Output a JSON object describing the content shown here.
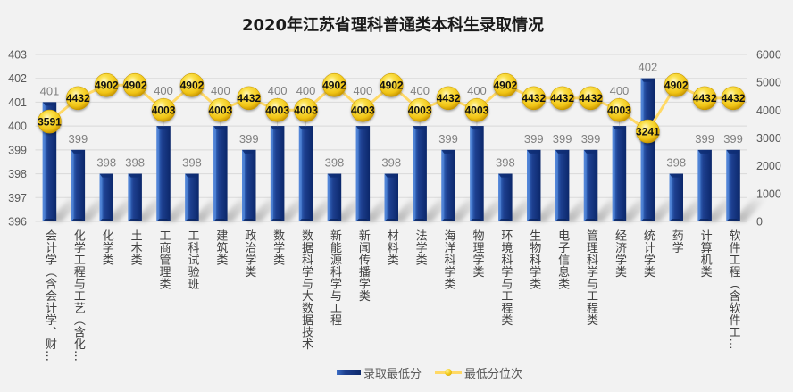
{
  "chart_data": {
    "type": "bar",
    "title": "2020年江苏省理科普通类本科生录取情况",
    "xlabel": "",
    "ylabel": "",
    "categories": [
      "会计学（含会计学、财…",
      "化学工程与工艺（含化…",
      "化学类",
      "土木类",
      "工商管理类",
      "工科试验班",
      "建筑类",
      "政治学类",
      "数学类",
      "数据科学与大数据技术",
      "新能源科学与工程",
      "新闻传播学类",
      "材料类",
      "法学类",
      "海洋科学类",
      "物理学类",
      "环境科学与工程类",
      "生物科学类",
      "电子信息类",
      "管理科学与工程类",
      "经济学类",
      "统计学类",
      "药学",
      "计算机类",
      "软件工程（含软件工…"
    ],
    "series": [
      {
        "name": "录取最低分",
        "chart_type": "bar",
        "axis": "left",
        "values": [
          401,
          399,
          398,
          398,
          400,
          398,
          400,
          399,
          400,
          400,
          398,
          400,
          398,
          400,
          399,
          400,
          398,
          399,
          399,
          399,
          400,
          402,
          398,
          399,
          399
        ]
      },
      {
        "name": "最低分位次",
        "chart_type": "line",
        "axis": "right",
        "values": [
          3591,
          4432,
          4902,
          4902,
          4003,
          4902,
          4003,
          4432,
          4003,
          4003,
          4902,
          4003,
          4902,
          4003,
          4432,
          4003,
          4902,
          4432,
          4432,
          4432,
          4003,
          3241,
          4902,
          4432,
          4432
        ]
      }
    ],
    "y_left": {
      "min": 396,
      "max": 403,
      "step": 1,
      "ticks": [
        396,
        397,
        398,
        399,
        400,
        401,
        402,
        403
      ]
    },
    "y_right": {
      "min": 0,
      "max": 6000,
      "step": 1000,
      "ticks": [
        0,
        1000,
        2000,
        3000,
        4000,
        5000,
        6000
      ]
    },
    "grid": true,
    "data_labels": true,
    "legend_position": "bottom",
    "colors": {
      "bar": "#1d3f8f",
      "line": "#ffd966",
      "marker": "#f5c518",
      "background": "#f2f2f2"
    }
  }
}
